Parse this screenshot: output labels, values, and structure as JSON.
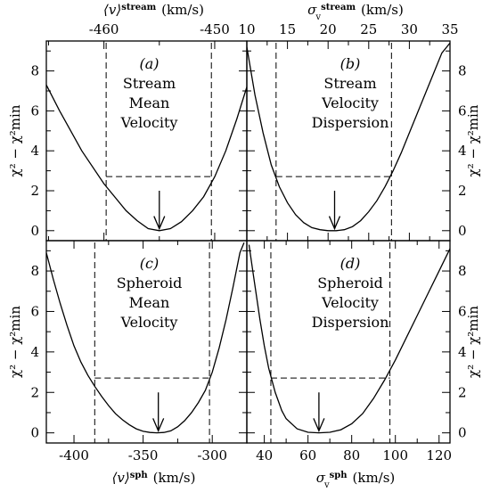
{
  "chart_data": [
    {
      "type": "line",
      "panel_label": "(a)",
      "annotation": [
        "Stream",
        "Mean",
        "Velocity"
      ],
      "x_axis_label_top": "⟨v⟩^stream (km/s)",
      "x_axis_label_top_base": "⟨v⟩",
      "x_axis_label_top_sup": "stream",
      "x_axis_label_top_unit": "(km/s)",
      "ylabel": "χ² − χ²min",
      "xlim": [
        -465.2,
        -447.1
      ],
      "ylim": [
        -0.5,
        9.5
      ],
      "x_ticks_major": [
        -460,
        -450
      ],
      "x_tick_labels": [
        "-460",
        "-450"
      ],
      "y_ticks_major": [
        0,
        2,
        4,
        6,
        8
      ],
      "y_tick_labels": [
        "0",
        "2",
        "4",
        "6",
        "8"
      ],
      "x": [
        -465.2,
        -464,
        -462,
        -460,
        -458,
        -457,
        -456,
        -455,
        -454,
        -453,
        -452,
        -451,
        -450,
        -449,
        -448,
        -447.1
      ],
      "y": [
        7.3,
        6.0,
        4.0,
        2.35,
        1.0,
        0.5,
        0.1,
        0.0,
        0.1,
        0.45,
        1.0,
        1.7,
        2.7,
        4.0,
        5.6,
        7.2
      ],
      "min_x": -455.0,
      "conf_level": 2.71,
      "conf_interval": [
        -459.8,
        -450.3
      ]
    },
    {
      "type": "line",
      "panel_label": "(b)",
      "annotation": [
        "Stream",
        "Velocity",
        "Dispersion"
      ],
      "x_axis_label_top": "σv^stream (km/s)",
      "x_axis_label_top_base": "σ",
      "x_axis_label_top_sub": "v",
      "x_axis_label_top_sup": "stream",
      "x_axis_label_top_unit": "(km/s)",
      "ylabel": "χ² − χ²min",
      "xlim": [
        10,
        35
      ],
      "ylim": [
        -0.5,
        9.5
      ],
      "x_ticks_major": [
        10,
        15,
        20,
        25,
        30,
        35
      ],
      "x_tick_labels": [
        "10",
        "15",
        "20",
        "25",
        "30",
        "35"
      ],
      "y_ticks_major": [
        0,
        2,
        4,
        6,
        8
      ],
      "y_tick_labels": [
        "0",
        "2",
        "4",
        "6",
        "8"
      ],
      "x": [
        10,
        11,
        12,
        13,
        14,
        15,
        16,
        17,
        18,
        19,
        20,
        21,
        22,
        23,
        24,
        25,
        26,
        27,
        28,
        29,
        30,
        31,
        32,
        33,
        34,
        35
      ],
      "y": [
        9.2,
        6.8,
        4.9,
        3.3,
        2.2,
        1.4,
        0.8,
        0.4,
        0.15,
        0.05,
        0.0,
        0.0,
        0.05,
        0.2,
        0.5,
        0.95,
        1.5,
        2.2,
        3.0,
        3.9,
        4.9,
        5.9,
        6.9,
        7.9,
        8.9,
        9.4
      ],
      "min_x": 20.8,
      "conf_level": 2.71,
      "conf_interval": [
        13.6,
        27.8
      ]
    },
    {
      "type": "line",
      "panel_label": "(c)",
      "annotation": [
        "Spheroid",
        "Mean",
        "Velocity"
      ],
      "x_axis_label_bottom": "⟨v⟩^sph (km/s)",
      "x_axis_label_bottom_base": "⟨v⟩",
      "x_axis_label_bottom_sup": "sph",
      "x_axis_label_bottom_unit": "(km/s)",
      "ylabel": "χ² − χ²min",
      "xlim": [
        -420,
        -275
      ],
      "ylim": [
        -0.5,
        9.5
      ],
      "x_ticks_major": [
        -400,
        -350,
        -300
      ],
      "x_tick_labels": [
        "-400",
        "-350",
        "-300"
      ],
      "y_ticks_major": [
        0,
        2,
        4,
        6,
        8
      ],
      "y_tick_labels": [
        "0",
        "2",
        "4",
        "6",
        "8"
      ],
      "x": [
        -420,
        -415,
        -410,
        -405,
        -400,
        -395,
        -390,
        -385,
        -380,
        -375,
        -370,
        -365,
        -360,
        -355,
        -350,
        -345,
        -340,
        -335,
        -330,
        -325,
        -320,
        -315,
        -310,
        -305,
        -300,
        -295,
        -290,
        -285,
        -280,
        -277
      ],
      "y": [
        8.9,
        7.6,
        6.4,
        5.3,
        4.3,
        3.5,
        2.85,
        2.3,
        1.8,
        1.35,
        0.95,
        0.65,
        0.4,
        0.2,
        0.08,
        0.02,
        0.0,
        0.02,
        0.1,
        0.3,
        0.6,
        1.0,
        1.5,
        2.1,
        3.0,
        4.2,
        5.6,
        7.2,
        8.9,
        9.4
      ],
      "min_x": -339.0,
      "conf_level": 2.71,
      "conf_interval": [
        -385.0,
        -302.0
      ]
    },
    {
      "type": "line",
      "panel_label": "(d)",
      "annotation": [
        "Spheroid",
        "Velocity",
        "Dispersion"
      ],
      "x_axis_label_bottom": "σv^sph (km/s)",
      "x_axis_label_bottom_base": "σ",
      "x_axis_label_bottom_sub": "v",
      "x_axis_label_bottom_sup": "sph",
      "x_axis_label_bottom_unit": "(km/s)",
      "ylabel": "χ² − χ²min",
      "xlim": [
        32,
        125
      ],
      "ylim": [
        -0.5,
        9.5
      ],
      "x_ticks_major": [
        40,
        60,
        80,
        100,
        120
      ],
      "x_tick_labels": [
        "40",
        "60",
        "80",
        "100",
        "120"
      ],
      "y_ticks_major": [
        0,
        2,
        4,
        6,
        8
      ],
      "y_tick_labels": [
        "0",
        "2",
        "4",
        "6",
        "8"
      ],
      "x": [
        33,
        35,
        38,
        40,
        42,
        45,
        48,
        50,
        55,
        60,
        65,
        70,
        75,
        80,
        85,
        90,
        95,
        100,
        105,
        110,
        115,
        120,
        125
      ],
      "y": [
        9.3,
        7.8,
        5.6,
        4.3,
        3.2,
        2.0,
        1.1,
        0.7,
        0.2,
        0.03,
        0.0,
        0.03,
        0.15,
        0.45,
        0.95,
        1.7,
        2.6,
        3.6,
        4.7,
        5.8,
        6.9,
        8.0,
        9.1
      ],
      "min_x": 65.0,
      "conf_level": 2.71,
      "conf_interval": [
        43.0,
        97.5
      ]
    }
  ]
}
